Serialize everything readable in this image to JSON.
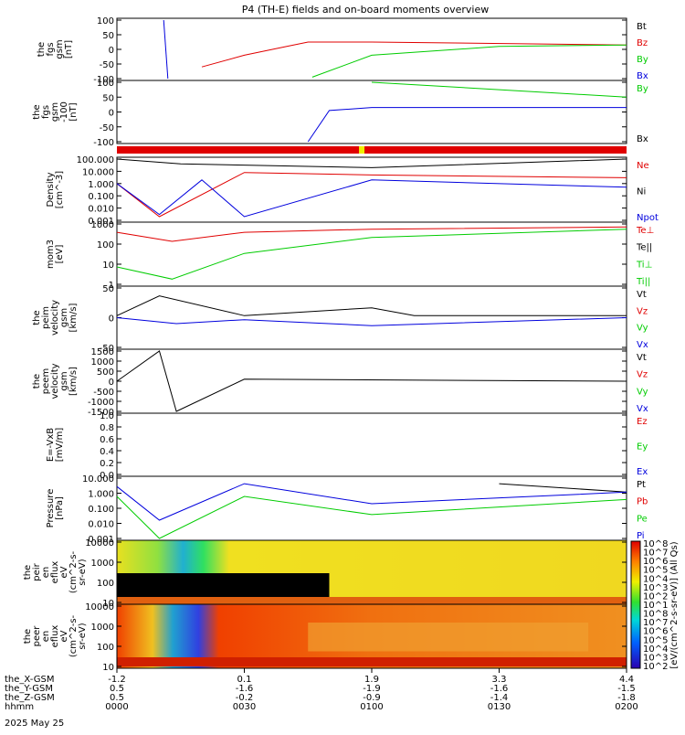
{
  "title": "P4 (TH-E) fields and on-board moments overview",
  "date_label": "2025 May 25",
  "colors": {
    "black": "#000000",
    "red": "#e00000",
    "green": "#00cc00",
    "blue": "#0000dd",
    "yellow": "#f0f000"
  },
  "panels": [
    {
      "id": "fgs",
      "ylabel": [
        "the",
        "fgs",
        "gsm",
        "[nT]"
      ],
      "ticks": [
        "100",
        "50",
        "0",
        "-50",
        "-100"
      ],
      "legend": [
        {
          "text": "Bt",
          "color": "#000000"
        },
        {
          "text": "Bz",
          "color": "#e00000"
        },
        {
          "text": "By",
          "color": "#00cc00"
        },
        {
          "text": "Bx",
          "color": "#0000dd"
        }
      ]
    },
    {
      "id": "fgs_dsl",
      "ylabel": [
        "the",
        "fgs",
        "gsm",
        "-100",
        "[nT]"
      ],
      "ticks": [
        "100",
        "50",
        "0",
        "-50",
        "-100"
      ],
      "legend": [
        {
          "text": "By",
          "color": "#00cc00"
        },
        {
          "text": "Bx",
          "color": "#000000"
        }
      ]
    },
    {
      "id": "density",
      "ylabel": [
        "Density",
        "[cm^-3]"
      ],
      "ticks": [
        "100.000",
        "10.000",
        "1.000",
        "0.100",
        "0.010",
        "0.001"
      ],
      "legend": [
        {
          "text": "Ne",
          "color": "#e00000"
        },
        {
          "text": "Ni",
          "color": "#000000"
        },
        {
          "text": "Npot",
          "color": "#0000dd"
        }
      ]
    },
    {
      "id": "temp",
      "ylabel": [
        "mom3",
        "[eV]"
      ],
      "ticks": [
        "1000",
        "100",
        "10",
        "1"
      ],
      "legend": [
        {
          "text": "Te⊥",
          "color": "#e00000"
        },
        {
          "text": "Te||",
          "color": "#000000"
        },
        {
          "text": "Ti⊥",
          "color": "#00cc00"
        },
        {
          "text": "Ti||",
          "color": "#00cc00"
        }
      ]
    },
    {
      "id": "peim",
      "ylabel": [
        "the",
        "peim",
        "velocity",
        "gsm",
        "[km/s]"
      ],
      "ticks": [
        "50",
        "0",
        "-50"
      ],
      "legend": [
        {
          "text": "Vt",
          "color": "#000000"
        },
        {
          "text": "Vz",
          "color": "#e00000"
        },
        {
          "text": "Vy",
          "color": "#00cc00"
        },
        {
          "text": "Vx",
          "color": "#0000dd"
        }
      ]
    },
    {
      "id": "peem",
      "ylabel": [
        "the",
        "peem",
        "velocity",
        "gsm",
        "[km/s]"
      ],
      "ticks": [
        "1500",
        "1000",
        "500",
        "0",
        "-500",
        "-1000",
        "-1500"
      ],
      "legend": [
        {
          "text": "Vt",
          "color": "#000000"
        },
        {
          "text": "Vz",
          "color": "#e00000"
        },
        {
          "text": "Vy",
          "color": "#00cc00"
        },
        {
          "text": "Vx",
          "color": "#0000dd"
        }
      ]
    },
    {
      "id": "efield",
      "ylabel": [
        "E=-VxB",
        "[mV/m]"
      ],
      "ticks": [
        "1.0",
        "0.8",
        "0.6",
        "0.4",
        "0.2",
        "0.0"
      ],
      "legend": [
        {
          "text": "Ez",
          "color": "#e00000"
        },
        {
          "text": "Ey",
          "color": "#00cc00"
        },
        {
          "text": "Ex",
          "color": "#0000dd"
        }
      ]
    },
    {
      "id": "pressure",
      "ylabel": [
        "Pressure",
        "[nPa]"
      ],
      "ticks": [
        "10.000",
        "1.000",
        "0.100",
        "0.010",
        "0.001"
      ],
      "legend": [
        {
          "text": "Pt",
          "color": "#000000"
        },
        {
          "text": "Pb",
          "color": "#e00000"
        },
        {
          "text": "Pe",
          "color": "#00cc00"
        },
        {
          "text": "Pi",
          "color": "#0000dd"
        }
      ]
    },
    {
      "id": "peir",
      "ylabel": [
        "the",
        "peir",
        "en",
        "eflux",
        "eV",
        "(cm^2-s-",
        "sr-eV)"
      ],
      "ticks": [
        "10000",
        "1000",
        "100",
        "10"
      ],
      "legend": []
    },
    {
      "id": "peer",
      "ylabel": [
        "the",
        "peer",
        "en",
        "eflux",
        "eV",
        "(cm^2-s-",
        "sr-eV)"
      ],
      "ticks": [
        "10000",
        "1000",
        "100",
        "10"
      ],
      "legend": []
    }
  ],
  "colorbar_ticks": [
    "10^8",
    "10^7",
    "10^6",
    "10^5",
    "10^4",
    "10^3",
    "10^2",
    "10^1",
    "10^8",
    "10^7",
    "10^6",
    "10^5",
    "10^4",
    "10^3",
    "10^2"
  ],
  "colorbar_label": "[eV/(cm^2-s-sr-eV)] (All Qs)",
  "xaxis": {
    "row_labels": [
      "the_X-GSM",
      "the_Y-GSM",
      "the_Z-GSM",
      "hhmm"
    ],
    "columns": [
      [
        "-1.2",
        "0.5",
        "0.5",
        "0000"
      ],
      [
        "0.1",
        "-1.6",
        "-0.2",
        "0030"
      ],
      [
        "1.9",
        "-1.9",
        "-0.9",
        "0100"
      ],
      [
        "3.3",
        "-1.6",
        "-1.4",
        "0130"
      ],
      [
        "4.4",
        "-1.5",
        "-1.8",
        "0200"
      ]
    ]
  },
  "chart_data": {
    "type": "line",
    "title": "P4 (TH-E) fields and on-board moments overview",
    "x_time_hhmm": [
      "0000",
      "0030",
      "0100",
      "0130",
      "0200"
    ],
    "panels": [
      {
        "name": "fgs gsm [nT]",
        "ylim": [
          -100,
          100
        ],
        "series": [
          {
            "name": "Bz",
            "x": [
              "0020",
              "0030",
              "0040",
              "0045",
              "0046",
              "0100",
              "0200"
            ],
            "values": [
              -60,
              -20,
              10,
              25,
              25,
              25,
              15
            ]
          },
          {
            "name": "By",
            "x": [
              "0046",
              "0100",
              "0130",
              "0200"
            ],
            "values": [
              -95,
              -20,
              10,
              15
            ]
          },
          {
            "name": "Bx",
            "x": [
              "0011",
              "0012"
            ],
            "values": [
              100,
              -100
            ]
          }
        ]
      },
      {
        "name": "fgs [nT]",
        "ylim": [
          -100,
          100
        ],
        "series": [
          {
            "name": "Bx",
            "x": [
              "0045",
              "0050",
              "0100",
              "0130",
              "0200"
            ],
            "values": [
              -100,
              5,
              15,
              15,
              15
            ]
          },
          {
            "name": "By",
            "x": [
              "0100",
              "0130",
              "0200"
            ],
            "values": [
              100,
              75,
              50
            ]
          }
        ]
      },
      {
        "name": "Density [cm^-3]",
        "ylim": [
          0.001,
          100
        ],
        "scale": "log",
        "series": [
          {
            "name": "Ne",
            "x": [
              "0000",
              "0010",
              "0030",
              "0100",
              "0200"
            ],
            "values": [
              1,
              0.002,
              8,
              5,
              3
            ]
          },
          {
            "name": "Ni",
            "x": [
              "0000",
              "0015",
              "0100",
              "0200"
            ],
            "values": [
              100,
              40,
              20,
              100
            ]
          },
          {
            "name": "Npot",
            "x": [
              "0000",
              "0010",
              "0020",
              "0030",
              "0100",
              "0200"
            ],
            "values": [
              1,
              0.003,
              2,
              0.002,
              2,
              0.5
            ]
          }
        ]
      },
      {
        "name": "Temperature [eV]",
        "ylim": [
          1,
          3000
        ],
        "scale": "log",
        "series": [
          {
            "name": "Te⊥",
            "x": [
              "0000",
              "0013",
              "0030",
              "0100",
              "0200"
            ],
            "values": [
              1000,
              300,
              1000,
              1500,
              2000
            ]
          },
          {
            "name": "Ti⊥",
            "x": [
              "0000",
              "0013",
              "0030",
              "0100",
              "0200"
            ],
            "values": [
              10,
              2,
              60,
              500,
              1500
            ]
          }
        ]
      },
      {
        "name": "peim velocity [km/s]",
        "ylim": [
          -75,
          75
        ],
        "series": [
          {
            "name": "Vt",
            "x": [
              "0000",
              "0010",
              "0030",
              "0100",
              "0110",
              "0200"
            ],
            "values": [
              5,
              55,
              5,
              25,
              5,
              5
            ]
          },
          {
            "name": "Vx",
            "x": [
              "0000",
              "0014",
              "0030",
              "0100",
              "0200"
            ],
            "values": [
              0,
              -15,
              -5,
              -20,
              0
            ]
          }
        ]
      },
      {
        "name": "peem velocity [km/s]",
        "ylim": [
          -1500,
          1500
        ],
        "series": [
          {
            "name": "Vt",
            "x": [
              "0000",
              "0010",
              "0014",
              "0030",
              "0200"
            ],
            "values": [
              0,
              1500,
              -1500,
              100,
              0
            ]
          }
        ]
      },
      {
        "name": "E=-VxB [mV/m]",
        "ylim": [
          0,
          1
        ],
        "series": []
      },
      {
        "name": "Pressure [nPa]",
        "ylim": [
          0.001,
          20
        ],
        "scale": "log",
        "series": [
          {
            "name": "Pt",
            "x": [
              "0130",
              "0200"
            ],
            "values": [
              8,
              2
            ]
          },
          {
            "name": "Pi",
            "x": [
              "0000",
              "0010",
              "0030",
              "0100",
              "0200"
            ],
            "values": [
              5,
              0.02,
              8,
              0.3,
              2
            ]
          },
          {
            "name": "Pe",
            "x": [
              "0000",
              "0010",
              "0030",
              "0100",
              "0200"
            ],
            "values": [
              1,
              0.001,
              1,
              0.05,
              0.6
            ]
          }
        ]
      }
    ]
  }
}
